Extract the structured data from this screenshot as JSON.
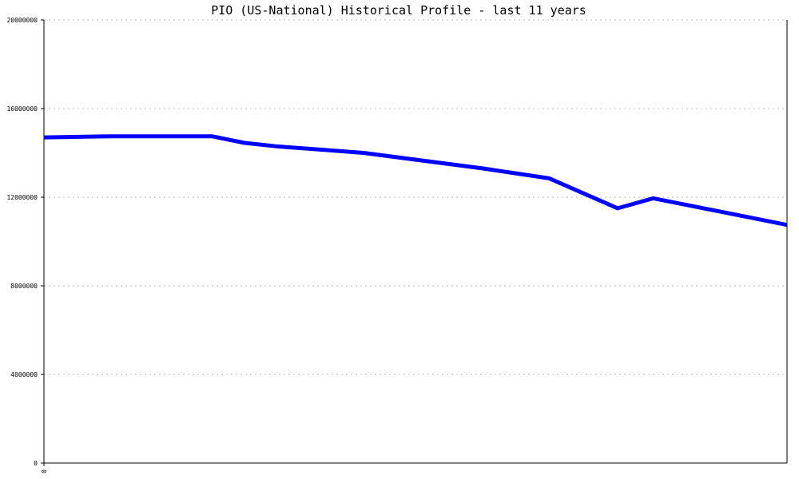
{
  "chart_data": {
    "type": "line",
    "title": "PIO (US-National) Historical Profile - last 11 years",
    "xlabel": "",
    "ylabel": "",
    "ylim": [
      0,
      20000000
    ],
    "y_ticks": [
      "0",
      "4000000",
      "8000000",
      "12000000",
      "16000000",
      "20000000"
    ],
    "x_ticks": [
      "0"
    ],
    "xlim": [
      0,
      1
    ],
    "grid": true,
    "legend": "none",
    "line_color": "#0000ff",
    "series": [
      {
        "x": [
          0.0,
          0.091,
          0.226,
          0.27,
          0.312,
          0.43,
          0.59,
          0.68,
          0.772,
          0.82,
          1.0
        ],
        "values": [
          14700000,
          14750000,
          14750000,
          14450000,
          14300000,
          14000000,
          13300000,
          12850000,
          11500000,
          11950000,
          10750000
        ]
      }
    ]
  }
}
